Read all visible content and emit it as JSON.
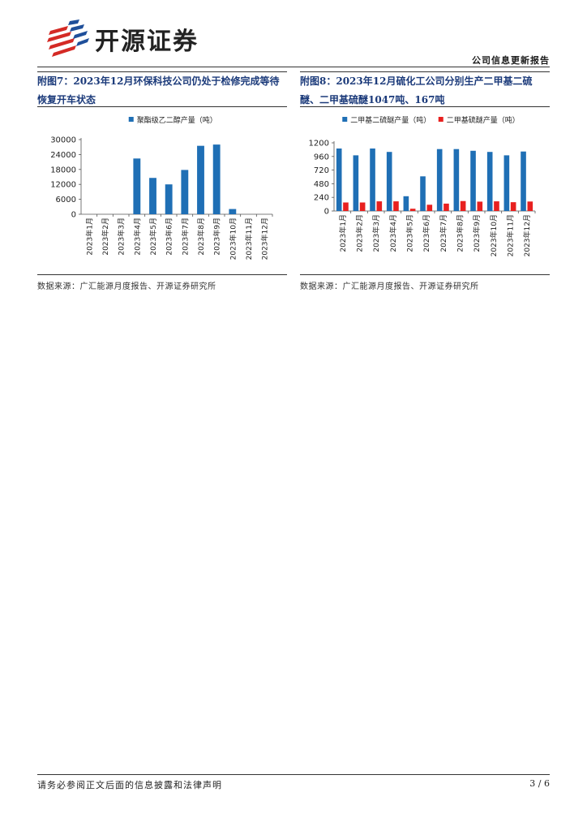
{
  "header": {
    "brand": "开源证券",
    "report_type": "公司信息更新报告"
  },
  "figure7": {
    "title": "附图7：2023年12月环保科技公司仍处于检修完成等待恢复开车状态",
    "source": "数据来源：广汇能源月度报告、开源证券研究所",
    "chart_data": {
      "type": "bar",
      "categories": [
        "2023年1月",
        "2023年2月",
        "2023年3月",
        "2023年4月",
        "2023年5月",
        "2023年6月",
        "2023年7月",
        "2023年8月",
        "2023年9月",
        "2023年10月",
        "2023年11月",
        "2023年12月"
      ],
      "series": [
        {
          "name": "聚酯级乙二醇产量（吨）",
          "values": [
            0,
            0,
            0,
            22400,
            14600,
            12000,
            17800,
            27500,
            28000,
            2100,
            0,
            0
          ],
          "color": "#1f6fb5"
        }
      ],
      "ylim": [
        0,
        30000
      ],
      "yticks": [
        "0",
        "6000",
        "12000",
        "18000",
        "24000",
        "30000"
      ],
      "ytick_values": [
        0,
        6000,
        12000,
        18000,
        24000,
        30000
      ],
      "legend_position": "top-center",
      "grid": false
    }
  },
  "figure8": {
    "title": "附图8：2023年12月硫化工公司分别生产二甲基二硫醚、二甲基硫醚1047吨、167吨",
    "source": "数据来源：广汇能源月度报告、开源证券研究所",
    "chart_data": {
      "type": "bar",
      "categories": [
        "2023年1月",
        "2023年2月",
        "2023年3月",
        "2023年4月",
        "2023年5月",
        "2023年6月",
        "2023年7月",
        "2023年8月",
        "2023年9月",
        "2023年10月",
        "2023年11月",
        "2023年12月"
      ],
      "series": [
        {
          "name": "二甲基二硫醚产量（吨）",
          "values": [
            1100,
            980,
            1100,
            1040,
            260,
            610,
            1090,
            1090,
            1060,
            1040,
            980,
            1047
          ],
          "color": "#1f6fb5"
        },
        {
          "name": "二甲基硫醚产量（吨）",
          "values": [
            150,
            150,
            170,
            170,
            40,
            110,
            130,
            175,
            165,
            170,
            155,
            167
          ],
          "color": "#e8201f"
        }
      ],
      "ylim": [
        0,
        1200
      ],
      "yticks": [
        "0",
        "240",
        "480",
        "720",
        "960",
        "1200"
      ],
      "ytick_values": [
        0,
        240,
        480,
        720,
        960,
        1200
      ],
      "legend_position": "top-center",
      "grid": false
    }
  },
  "footer": {
    "disclaimer": "请务必参阅正文后面的信息披露和法律声明",
    "page": "3 / 6"
  }
}
